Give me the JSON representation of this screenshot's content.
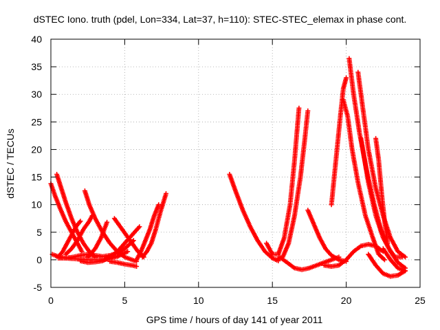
{
  "chart_data": {
    "type": "scatter",
    "title": "dSTEC Iono. truth (pdel, Lon=334, Lat=37, h=110): STEC-STEC_elemax in phase cont.",
    "xlabel": "GPS time / hours of day 141 of year 2011",
    "ylabel": "dSTEC  / TECUs",
    "xlim": [
      0,
      25
    ],
    "ylim": [
      -5,
      40
    ],
    "xticks": [
      0,
      5,
      10,
      15,
      20,
      25
    ],
    "yticks": [
      -5,
      0,
      5,
      10,
      15,
      20,
      25,
      30,
      35,
      40
    ],
    "grid": true,
    "marker": "+",
    "color": "#ff0000",
    "series": [
      {
        "x": [
          0.0,
          0.3,
          0.6,
          1.0,
          1.4,
          1.8,
          2.1
        ],
        "y": [
          13.8,
          11.5,
          9.5,
          7.0,
          5.0,
          3.0,
          1.5
        ]
      },
      {
        "x": [
          0.4,
          0.7,
          1.0,
          1.4,
          1.8,
          2.2,
          2.6,
          3.0
        ],
        "y": [
          15.5,
          13.0,
          10.5,
          7.5,
          5.0,
          3.0,
          1.5,
          0.5
        ]
      },
      {
        "x": [
          0.1,
          0.5,
          1.0,
          1.5,
          2.0,
          2.5,
          3.0,
          3.5,
          4.0,
          4.5,
          5.2
        ],
        "y": [
          1.0,
          0.6,
          0.3,
          0.2,
          0.1,
          0.0,
          0.0,
          0.0,
          0.2,
          0.6,
          1.5
        ]
      },
      {
        "x": [
          0.5,
          1.0,
          1.5,
          2.0,
          2.5,
          3.0,
          3.5,
          4.0,
          4.5,
          5.0,
          5.6
        ],
        "y": [
          0.3,
          0.3,
          0.5,
          0.8,
          1.0,
          0.8,
          0.6,
          0.8,
          1.2,
          2.0,
          3.5
        ]
      },
      {
        "x": [
          0.5,
          0.8,
          1.1,
          1.4,
          1.7,
          2.0
        ],
        "y": [
          0.5,
          1.5,
          3.0,
          4.5,
          6.0,
          7.0
        ]
      },
      {
        "x": [
          1.0,
          1.4,
          1.8,
          2.2,
          2.6,
          2.8
        ],
        "y": [
          1.0,
          2.0,
          3.5,
          5.5,
          7.0,
          8.0
        ]
      },
      {
        "x": [
          2.3,
          2.6,
          3.0,
          3.5,
          4.0,
          4.5,
          5.0,
          5.5,
          5.8
        ],
        "y": [
          12.5,
          10.0,
          7.5,
          5.0,
          3.0,
          1.5,
          0.5,
          0.0,
          -0.3
        ]
      },
      {
        "x": [
          2.5,
          3.0,
          3.4,
          3.8
        ],
        "y": [
          0.5,
          2.0,
          4.0,
          6.8
        ]
      },
      {
        "x": [
          2.0,
          2.5,
          3.0,
          3.5,
          4.0,
          4.5,
          5.0,
          5.5,
          6.0
        ],
        "y": [
          -0.2,
          -0.5,
          -0.4,
          -0.2,
          0.5,
          1.5,
          3.0,
          4.5,
          6.0
        ]
      },
      {
        "x": [
          4.3,
          4.7,
          5.1,
          5.5,
          5.9,
          6.3
        ],
        "y": [
          7.5,
          6.0,
          4.5,
          3.0,
          1.5,
          0.5
        ]
      },
      {
        "x": [
          4.0,
          4.5,
          5.0,
          5.5,
          5.8
        ],
        "y": [
          -0.3,
          -0.5,
          -0.8,
          -1.0,
          -1.2
        ]
      },
      {
        "x": [
          5.8,
          6.1,
          6.4,
          6.7,
          7.0,
          7.3
        ],
        "y": [
          0.0,
          1.5,
          3.5,
          5.5,
          8.0,
          10.0
        ]
      },
      {
        "x": [
          6.2,
          6.5,
          6.8,
          7.1,
          7.4,
          7.8
        ],
        "y": [
          0.5,
          1.5,
          3.0,
          5.5,
          8.5,
          12.0
        ]
      },
      {
        "x": [
          12.1,
          12.5,
          13.0,
          13.5,
          14.0,
          14.5,
          15.0,
          15.4
        ],
        "y": [
          15.5,
          12.5,
          9.0,
          6.0,
          3.5,
          1.5,
          0.3,
          -0.2
        ]
      },
      {
        "x": [
          14.6,
          15.0,
          15.4,
          15.8,
          16.2,
          16.5,
          16.8
        ],
        "y": [
          3.0,
          1.0,
          1.0,
          4.0,
          10.0,
          18.0,
          27.5
        ]
      },
      {
        "x": [
          15.3,
          15.7,
          16.1,
          16.5,
          16.9,
          17.2,
          17.4
        ],
        "y": [
          0.0,
          0.5,
          3.0,
          8.0,
          15.0,
          22.0,
          27.0
        ]
      },
      {
        "x": [
          15.5,
          16.0,
          16.5,
          17.0,
          17.5,
          18.0,
          18.5,
          19.0,
          19.5
        ],
        "y": [
          0.5,
          -0.5,
          -1.5,
          -1.8,
          -1.5,
          -1.0,
          -0.5,
          0.0,
          0.5
        ]
      },
      {
        "x": [
          17.4,
          17.8,
          18.2,
          18.6,
          19.0,
          19.5,
          20.0
        ],
        "y": [
          9.0,
          6.5,
          4.0,
          2.0,
          0.8,
          0.0,
          -0.3
        ]
      },
      {
        "x": [
          18.5,
          19.0,
          19.5,
          20.0,
          20.5,
          21.0,
          21.5,
          22.0,
          22.5
        ],
        "y": [
          -1.0,
          -1.2,
          -1.0,
          0.0,
          1.5,
          2.5,
          2.8,
          2.5,
          1.5
        ]
      },
      {
        "x": [
          19.0,
          19.3,
          19.6,
          19.8,
          20.0
        ],
        "y": [
          10.0,
          18.0,
          26.0,
          31.0,
          33.0
        ]
      },
      {
        "x": [
          19.8,
          20.1,
          20.4,
          20.8,
          21.3,
          21.8,
          22.2,
          22.6
        ],
        "y": [
          29.0,
          26.0,
          20.0,
          14.0,
          8.0,
          4.0,
          1.0,
          0.0
        ]
      },
      {
        "x": [
          20.2,
          20.5,
          20.9,
          21.4,
          21.9,
          22.4,
          22.9,
          23.3,
          23.8
        ],
        "y": [
          36.5,
          30.0,
          23.0,
          16.0,
          10.0,
          5.0,
          2.0,
          0.5,
          0.5
        ]
      },
      {
        "x": [
          20.8,
          21.1,
          21.5,
          22.0,
          22.5,
          23.0,
          23.5,
          24.0
        ],
        "y": [
          34.0,
          28.0,
          20.0,
          13.0,
          8.0,
          4.0,
          1.5,
          0.5
        ]
      },
      {
        "x": [
          21.0,
          21.5,
          22.0,
          22.5,
          23.0,
          23.5,
          24.0
        ],
        "y": [
          22.0,
          14.0,
          8.0,
          4.0,
          1.5,
          -0.5,
          -1.5
        ]
      },
      {
        "x": [
          22.0,
          22.2,
          22.4,
          22.6,
          22.8
        ],
        "y": [
          22.0,
          18.0,
          12.0,
          7.0,
          3.0
        ]
      },
      {
        "x": [
          21.5,
          22.0,
          22.5,
          23.0,
          23.5,
          24.0
        ],
        "y": [
          1.0,
          -1.0,
          -2.5,
          -3.0,
          -2.8,
          -2.0
        ]
      },
      {
        "x": [
          22.5,
          23.0,
          23.5,
          24.0
        ],
        "y": [
          2.0,
          0.0,
          -1.5,
          -2.0
        ]
      }
    ]
  }
}
